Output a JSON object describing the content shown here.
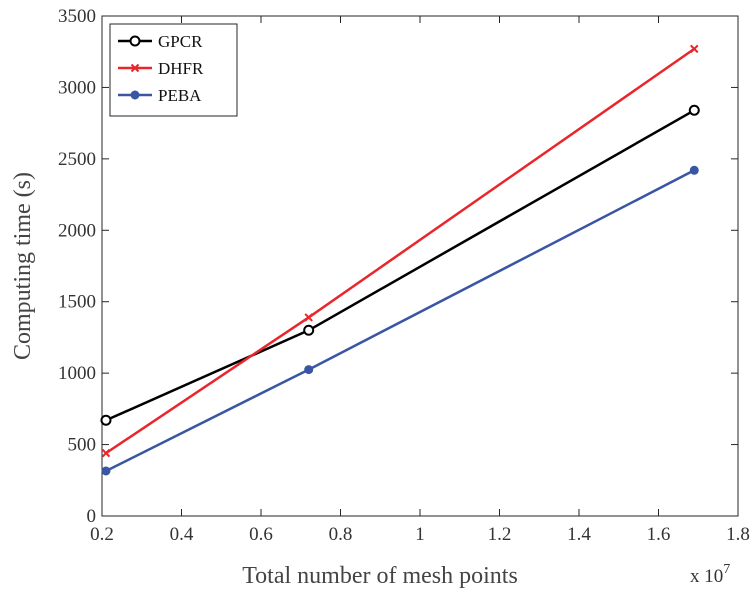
{
  "chart_data": {
    "type": "line",
    "title": "",
    "xlabel": "Total number of mesh points",
    "ylabel": "Computing time (s)",
    "x_multiplier_label": {
      "prefix": "x 10",
      "exponent": "7"
    },
    "xlim": [
      0.2,
      1.8
    ],
    "ylim": [
      0,
      3500
    ],
    "xticks": [
      0.2,
      0.4,
      0.6,
      0.8,
      1,
      1.2,
      1.4,
      1.6,
      1.8
    ],
    "xtick_labels": [
      "0.2",
      "0.4",
      "0.6",
      "0.8",
      "1",
      "1.2",
      "1.4",
      "1.6",
      "1.8"
    ],
    "yticks": [
      0,
      500,
      1000,
      1500,
      2000,
      2500,
      3000,
      3500
    ],
    "ytick_labels": [
      "0",
      "500",
      "1000",
      "1500",
      "2000",
      "2500",
      "3000",
      "3500"
    ],
    "grid": false,
    "legend_position": "top-left",
    "x": [
      0.21,
      0.72,
      1.69
    ],
    "series": [
      {
        "name": "GPCR",
        "values": [
          670,
          1300,
          2840
        ],
        "color": "#000000",
        "marker": "open-circle"
      },
      {
        "name": "DHFR",
        "values": [
          440,
          1390,
          3270
        ],
        "color": "#e8262b",
        "marker": "x"
      },
      {
        "name": "PEBA",
        "values": [
          315,
          1025,
          2420
        ],
        "color": "#3a55a4",
        "marker": "filled-circle"
      }
    ]
  }
}
